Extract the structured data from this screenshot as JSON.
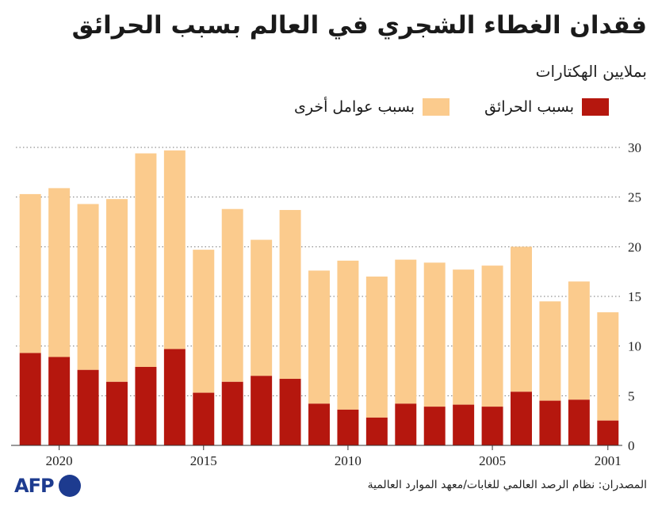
{
  "header": {
    "title": "فقدان الغطاء الشجري في العالم بسبب الحرائق",
    "subtitle": "بملايين الهكتارات"
  },
  "legend": {
    "fires": "بسبب الحرائق",
    "other": "بسبب عوامل أخرى"
  },
  "source": "المصدران: نظام الرصد العالمي للغابات/معهد الموارد العالمية",
  "logo": {
    "text": "AFP"
  },
  "colors": {
    "fires": "#b5170e",
    "other": "#fbcb8d",
    "grid": "#777777"
  },
  "chart_data": {
    "type": "bar",
    "stacked": true,
    "x_direction": "right-to-left",
    "categories": [
      2001,
      2002,
      2003,
      2004,
      2005,
      2006,
      2007,
      2008,
      2009,
      2010,
      2011,
      2012,
      2013,
      2014,
      2015,
      2016,
      2017,
      2018,
      2019,
      2020,
      2021
    ],
    "x_tick_labels": [
      "2001",
      "2005",
      "2010",
      "2015",
      "2020"
    ],
    "y_ticks": [
      0,
      5,
      10,
      15,
      20,
      25,
      30
    ],
    "ylim": [
      0,
      30
    ],
    "grid": "horizontal-dotted",
    "series": [
      {
        "name": "بسبب الحرائق",
        "values": [
          2.5,
          4.6,
          4.5,
          5.4,
          3.9,
          4.1,
          3.9,
          4.2,
          2.8,
          3.6,
          4.2,
          6.7,
          7.0,
          6.4,
          5.3,
          9.7,
          7.9,
          6.4,
          7.6,
          8.9,
          9.3
        ]
      },
      {
        "name": "بسبب عوامل أخرى",
        "values": [
          10.9,
          11.9,
          10.0,
          14.6,
          14.2,
          13.6,
          14.5,
          14.5,
          14.2,
          15.0,
          13.4,
          17.0,
          13.7,
          17.4,
          14.4,
          20.0,
          21.5,
          18.4,
          16.7,
          17.0,
          16.0
        ]
      }
    ]
  }
}
